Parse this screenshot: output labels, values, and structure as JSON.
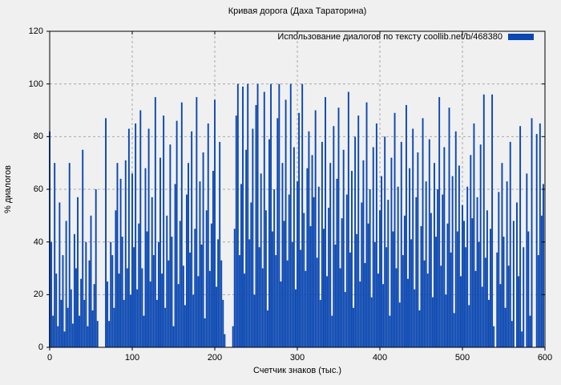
{
  "title": "Кривая дорога (Даха Тараторина)",
  "legend": {
    "label": "Использование диалогов по тексту  coollib.net/b/468380"
  },
  "axes": {
    "y_label": "% диалогов",
    "x_label": "Счетчик знаков (тыс.)",
    "y_ticks": [
      0,
      20,
      40,
      60,
      80,
      100,
      120
    ],
    "x_ticks": [
      0,
      100,
      200,
      300,
      400,
      500,
      600
    ]
  },
  "colors": {
    "background": "#f0f0f0",
    "bar": "#0a47b1",
    "grid": "#a8a8a8",
    "border": "#000000"
  },
  "chart_data": {
    "type": "bar",
    "title": "Кривая дорога (Даха Тараторина)",
    "series_label": "Использование диалогов по тексту  coollib.net/b/468380",
    "xlabel": "Счетчик знаков (тыс.)",
    "ylabel": "% диалогов",
    "xlim": [
      0,
      600
    ],
    "ylim": [
      0,
      120
    ],
    "grid": true,
    "legend_position": "top-right",
    "bar_color": "#0a47b1",
    "x_start": 0,
    "x_step": 2,
    "values": [
      82,
      40,
      12,
      70,
      28,
      8,
      55,
      18,
      35,
      6,
      48,
      15,
      70,
      22,
      9,
      43,
      30,
      57,
      12,
      26,
      75,
      18,
      40,
      8,
      33,
      50,
      14,
      24,
      60,
      10,
      0,
      0,
      0,
      0,
      87,
      25,
      10,
      40,
      35,
      15,
      52,
      70,
      28,
      64,
      42,
      18,
      71,
      30,
      83,
      20,
      66,
      38,
      85,
      22,
      47,
      90,
      30,
      12,
      68,
      44,
      83,
      25,
      57,
      35,
      95,
      18,
      40,
      72,
      28,
      88,
      15,
      50,
      33,
      77,
      42,
      8,
      62,
      86,
      24,
      48,
      93,
      31,
      16,
      58,
      70,
      36,
      82,
      20,
      45,
      95,
      27,
      63,
      39,
      74,
      11,
      52,
      85,
      29,
      47,
      67,
      94,
      23,
      41,
      78,
      33,
      18,
      5,
      0,
      0,
      0,
      0,
      8,
      45,
      88,
      100,
      35,
      62,
      99,
      28,
      75,
      100,
      41,
      55,
      83,
      20,
      92,
      100,
      38,
      66,
      30,
      97,
      52,
      14,
      79,
      100,
      44,
      60,
      35,
      87,
      100,
      25,
      70,
      48,
      94,
      33,
      58,
      100,
      40,
      76,
      22,
      63,
      89,
      37,
      100,
      51,
      29,
      68,
      82,
      46,
      73,
      57,
      90,
      34,
      61,
      18,
      78,
      45,
      95,
      27,
      53,
      70,
      12,
      84,
      39,
      64,
      91,
      30,
      49,
      75,
      21,
      58,
      97,
      36,
      67,
      15,
      80,
      43,
      88,
      25,
      55,
      71,
      32,
      93,
      47,
      60,
      19,
      76,
      40,
      85,
      28,
      52,
      65,
      24,
      80,
      38,
      56,
      12,
      72,
      44,
      89,
      30,
      61,
      17,
      78,
      35,
      50,
      92,
      26,
      68,
      41,
      83,
      22,
      57,
      74,
      14,
      46,
      87,
      33,
      63,
      28,
      79,
      51,
      19,
      70,
      42,
      60,
      95,
      31,
      58,
      76,
      20,
      47,
      91,
      36,
      65,
      13,
      82,
      44,
      69,
      27,
      54,
      48,
      38,
      61,
      16,
      73,
      49,
      85,
      29,
      57,
      40,
      77,
      23,
      96,
      34,
      52,
      18,
      45,
      96,
      8,
      0,
      36,
      59,
      24,
      70,
      42,
      15,
      63,
      31,
      78,
      10,
      48,
      0,
      55,
      27,
      84,
      6,
      38,
      0,
      66,
      44,
      12,
      87,
      0,
      0,
      81,
      35,
      85,
      50,
      62
    ]
  }
}
